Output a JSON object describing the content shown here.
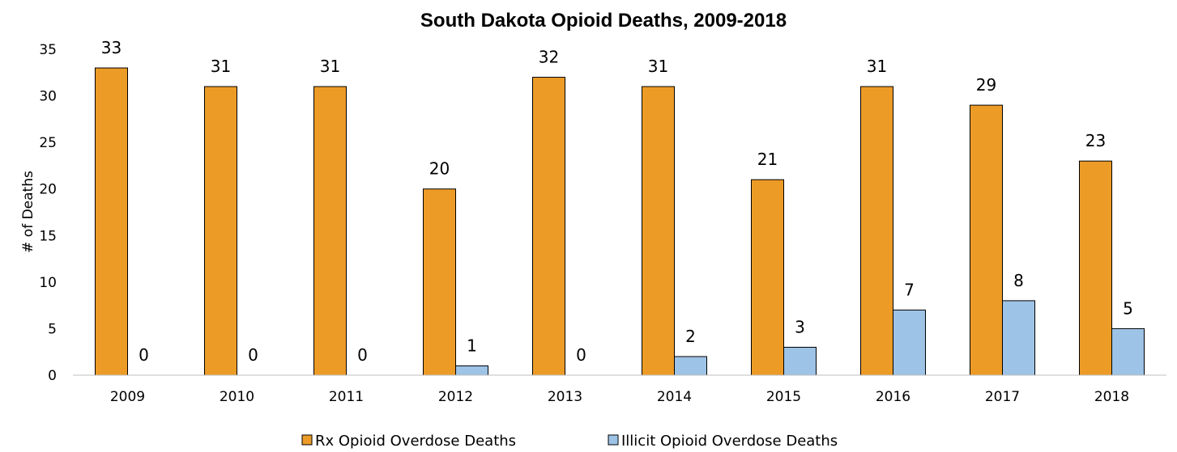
{
  "chart_data": {
    "type": "bar",
    "title": "South Dakota Opioid Deaths, 2009-2018",
    "xlabel": "",
    "ylabel": "# of Deaths",
    "ylim": [
      0,
      35
    ],
    "yticks": [
      0,
      5,
      10,
      15,
      20,
      25,
      30,
      35
    ],
    "grid": false,
    "legend_position": "bottom",
    "categories": [
      "2009",
      "2010",
      "2011",
      "2012",
      "2013",
      "2014",
      "2015",
      "2016",
      "2017",
      "2018"
    ],
    "series": [
      {
        "name": "Rx Opioid Overdose Deaths",
        "color": "#EC9B27",
        "values": [
          33,
          31,
          31,
          20,
          32,
          31,
          21,
          31,
          29,
          23
        ]
      },
      {
        "name": "Illicit Opioid Overdose Deaths",
        "color": "#9DC3E6",
        "values": [
          0,
          0,
          0,
          1,
          0,
          2,
          3,
          7,
          8,
          5
        ]
      }
    ]
  }
}
